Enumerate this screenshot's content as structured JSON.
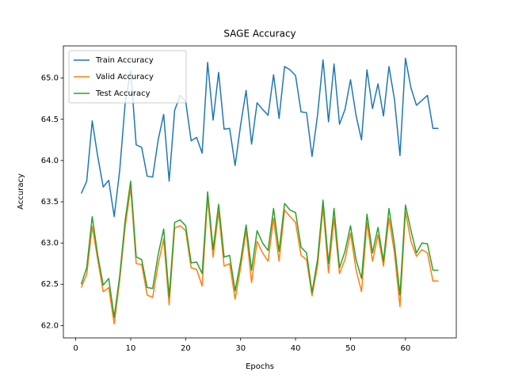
{
  "chart_data": {
    "type": "line",
    "title": "SAGE Accuracy",
    "x_label": "Epochs",
    "y_label": "Accuracy",
    "x": [
      1,
      2,
      3,
      4,
      5,
      6,
      7,
      8,
      9,
      10,
      11,
      12,
      13,
      14,
      15,
      16,
      17,
      18,
      19,
      20,
      21,
      22,
      23,
      24,
      25,
      26,
      27,
      28,
      29,
      30,
      31,
      32,
      33,
      34,
      35,
      36,
      37,
      38,
      39,
      40,
      41,
      42,
      43,
      44,
      45,
      46,
      47,
      48,
      49,
      50,
      51,
      52,
      53,
      54,
      55,
      56,
      57,
      58,
      59,
      60,
      61,
      62,
      63,
      64,
      65,
      66
    ],
    "series": [
      {
        "name": "Train Accuracy",
        "color": "#1f77b4",
        "values": [
          63.6,
          63.75,
          64.48,
          64.05,
          63.68,
          63.76,
          63.32,
          63.88,
          64.7,
          65.09,
          64.19,
          64.16,
          63.81,
          63.8,
          64.25,
          64.56,
          63.75,
          64.61,
          64.79,
          64.72,
          64.24,
          64.28,
          64.09,
          65.19,
          64.49,
          65.07,
          64.38,
          64.39,
          63.94,
          64.43,
          64.85,
          64.2,
          64.7,
          64.62,
          64.55,
          65.04,
          64.51,
          65.14,
          65.1,
          65.03,
          64.59,
          64.58,
          64.05,
          64.55,
          65.22,
          64.47,
          65.17,
          64.44,
          64.62,
          64.98,
          64.55,
          64.25,
          65.1,
          64.63,
          64.93,
          64.54,
          65.14,
          64.74,
          64.06,
          65.24,
          64.88,
          64.67,
          64.73,
          64.79,
          64.39,
          64.39
        ]
      },
      {
        "name": "Valid Accuracy",
        "color": "#ff7f0e",
        "values": [
          62.46,
          62.62,
          63.2,
          62.8,
          62.41,
          62.46,
          62.02,
          62.55,
          63.2,
          63.67,
          62.75,
          62.74,
          62.37,
          62.34,
          62.74,
          63.05,
          62.25,
          63.18,
          63.21,
          63.15,
          62.7,
          62.68,
          62.48,
          63.55,
          62.83,
          63.38,
          62.72,
          62.75,
          62.32,
          62.7,
          63.15,
          62.52,
          63.02,
          62.88,
          62.78,
          63.3,
          62.78,
          63.4,
          63.32,
          63.25,
          62.85,
          62.8,
          62.36,
          62.72,
          63.43,
          62.64,
          63.3,
          62.63,
          62.8,
          63.12,
          62.68,
          62.41,
          63.25,
          62.78,
          63.1,
          62.72,
          63.3,
          62.88,
          62.23,
          63.38,
          63.02,
          62.84,
          62.92,
          62.88,
          62.54,
          62.54
        ]
      },
      {
        "name": "Test Accuracy",
        "color": "#2ca02c",
        "values": [
          62.5,
          62.7,
          63.32,
          62.85,
          62.49,
          62.57,
          62.1,
          62.6,
          63.28,
          63.75,
          62.83,
          62.8,
          62.46,
          62.45,
          62.86,
          63.17,
          62.35,
          63.25,
          63.28,
          63.21,
          62.76,
          62.77,
          62.63,
          63.62,
          62.92,
          63.47,
          62.83,
          62.85,
          62.42,
          62.78,
          63.22,
          62.67,
          63.15,
          63.0,
          62.91,
          63.42,
          62.9,
          63.48,
          63.4,
          63.37,
          62.95,
          62.88,
          62.4,
          62.8,
          63.52,
          62.75,
          63.42,
          62.7,
          62.9,
          63.21,
          62.8,
          62.57,
          63.35,
          62.88,
          63.19,
          62.78,
          63.42,
          62.98,
          62.37,
          63.46,
          63.15,
          62.88,
          63.0,
          62.99,
          62.67,
          62.67
        ]
      }
    ],
    "xlim": [
      -2.25,
      69.25
    ],
    "xticks": [
      0,
      10,
      20,
      30,
      40,
      50,
      60
    ],
    "ylim": [
      61.85,
      65.39
    ],
    "yticks": [
      {
        "value": 62,
        "label": "62.0"
      },
      62.5,
      {
        "value": 63,
        "label": "63.0"
      },
      63.5,
      {
        "value": 64,
        "label": "64.0"
      },
      64.5,
      {
        "value": 65,
        "label": "65.0"
      }
    ],
    "legend": "upper left"
  }
}
